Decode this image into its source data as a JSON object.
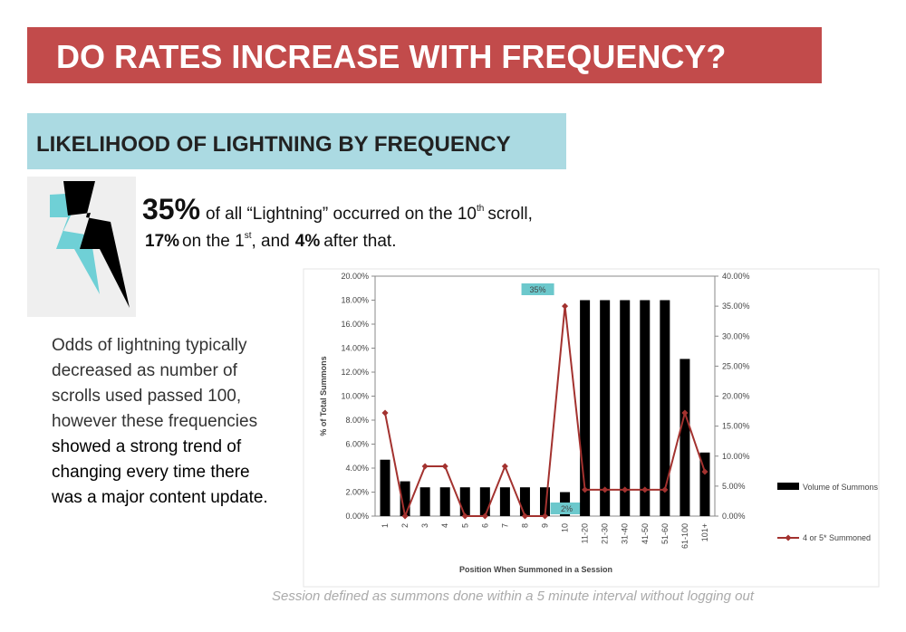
{
  "header": {
    "title": "DO RATES INCREASE WITH FREQUENCY?",
    "subtitle": "LIKELIHOOD OF LIGHTNING BY FREQUENCY"
  },
  "intro": {
    "line1": [
      "35%",
      "of all “Lightning” occurred on the 10",
      "th",
      "scroll,"
    ],
    "line2": [
      "17%",
      "on the 1",
      "st",
      ", and",
      "4%",
      "after that."
    ]
  },
  "paragraph": {
    "lines": [
      "Odds of lightning typically",
      "decreased as number of",
      "scrolls used passed 100,",
      "however these frequencies",
      "showed a strong trend of",
      "changing every time there",
      "was a major content update."
    ]
  },
  "footnote": "Session defined as summons done within a 5 minute interval without logging out",
  "chart_data": {
    "type": "bar-line",
    "x_label": "Position When Summoned in a Session",
    "y_label": "% of Total Summons",
    "categories": [
      "1",
      "2",
      "3",
      "4",
      "5",
      "6",
      "7",
      "8",
      "9",
      "10",
      "11-20",
      "21-30",
      "31-40",
      "41-50",
      "51-60",
      "61-100",
      "101+"
    ],
    "series": [
      {
        "name": "Volume of Summons",
        "type": "bar",
        "color": "#000000",
        "values": [
          4.7,
          2.9,
          2.4,
          2.4,
          2.4,
          2.4,
          2.4,
          2.4,
          2.4,
          2,
          18,
          18,
          18,
          18,
          18,
          13.1,
          5.3
        ],
        "value_labels": [
          null,
          null,
          null,
          null,
          null,
          null,
          null,
          null,
          null,
          "2%",
          null,
          null,
          null,
          null,
          null,
          null,
          null
        ]
      },
      {
        "name": "4 or 5* Summoned",
        "type": "line",
        "axis": "y2",
        "color": "#a3322f",
        "values": [
          17.2,
          0,
          8.3,
          8.3,
          0,
          0,
          8.3,
          0,
          0,
          35,
          4.4,
          4.4,
          4.4,
          4.4,
          4.4,
          17.2,
          7.4
        ],
        "value_labels": [
          null,
          null,
          null,
          null,
          null,
          null,
          null,
          null,
          null,
          "35%",
          null,
          null,
          null,
          null,
          null,
          null,
          null
        ]
      }
    ],
    "ylim": [
      0,
      20
    ],
    "yticks": [
      {
        "value": 0,
        "label": "0.00%"
      },
      {
        "value": 2,
        "label": "2.00%"
      },
      {
        "value": 4,
        "label": "4.00%"
      },
      {
        "value": 6,
        "label": "6.00%"
      },
      {
        "value": 8,
        "label": "8.00%"
      },
      {
        "value": 10,
        "label": "10.00%"
      },
      {
        "value": 12,
        "label": "12.00%"
      },
      {
        "value": 14,
        "label": "14.00%"
      },
      {
        "value": 16,
        "label": "16.00%"
      },
      {
        "value": 18,
        "label": "18.00%"
      },
      {
        "value": 20,
        "label": "20.00%"
      }
    ],
    "y2lim": [
      0,
      40
    ],
    "y2ticks": [
      {
        "value": 0,
        "label": "0.00%"
      },
      {
        "value": 5,
        "label": "5.00%"
      },
      {
        "value": 10,
        "label": "10.00%"
      },
      {
        "value": 15,
        "label": "15.00%"
      },
      {
        "value": 20,
        "label": "20.00%"
      },
      {
        "value": 25,
        "label": "25.00%"
      },
      {
        "value": 30,
        "label": "30.00%"
      },
      {
        "value": 35,
        "label": "35.00%"
      },
      {
        "value": 40,
        "label": "40.00%"
      }
    ],
    "grid": false,
    "label_color": "#6cc8cc"
  }
}
